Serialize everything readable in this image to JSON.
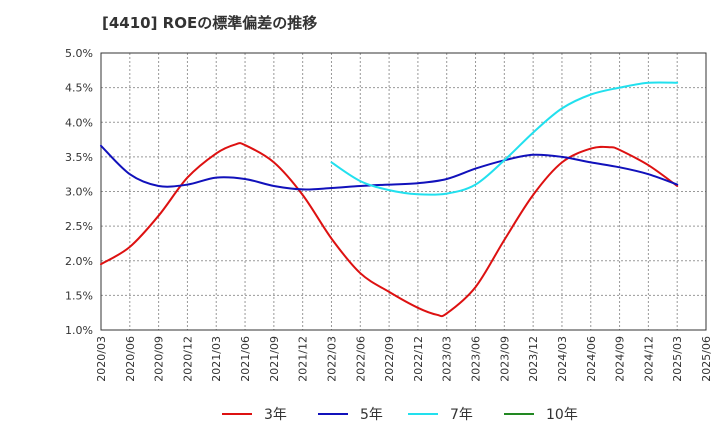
{
  "chart_data": {
    "type": "line",
    "title": "[4410]  ROEの標準偏差の推移",
    "xlabel": "",
    "ylabel": "",
    "ylim": [
      1.0,
      5.0
    ],
    "yticks": [
      "1.0%",
      "1.5%",
      "2.0%",
      "2.5%",
      "3.0%",
      "3.5%",
      "4.0%",
      "4.5%",
      "5.0%"
    ],
    "ytick_values": [
      1.0,
      1.5,
      2.0,
      2.5,
      3.0,
      3.5,
      4.0,
      4.5,
      5.0
    ],
    "xticks": [
      "2020/03",
      "2020/06",
      "2020/09",
      "2020/12",
      "2021/03",
      "2021/06",
      "2021/09",
      "2021/12",
      "2022/03",
      "2022/06",
      "2022/09",
      "2022/12",
      "2023/03",
      "2023/06",
      "2023/09",
      "2023/12",
      "2024/03",
      "2024/06",
      "2024/09",
      "2024/12",
      "2025/03",
      "2025/06"
    ],
    "grid": true,
    "legend_position": "bottom",
    "series": [
      {
        "name": "3年",
        "color": "#dd1111",
        "points": [
          [
            "2020/03",
            1.95
          ],
          [
            "2020/06",
            2.2
          ],
          [
            "2020/09",
            2.65
          ],
          [
            "2020/12",
            3.2
          ],
          [
            "2021/03",
            3.55
          ],
          [
            "2021/05",
            3.68
          ],
          [
            "2021/06",
            3.67
          ],
          [
            "2021/09",
            3.42
          ],
          [
            "2021/12",
            2.95
          ],
          [
            "2022/03",
            2.32
          ],
          [
            "2022/06",
            1.82
          ],
          [
            "2022/09",
            1.55
          ],
          [
            "2022/12",
            1.32
          ],
          [
            "2023/02",
            1.22
          ],
          [
            "2023/03",
            1.24
          ],
          [
            "2023/06",
            1.62
          ],
          [
            "2023/09",
            2.3
          ],
          [
            "2023/12",
            2.95
          ],
          [
            "2024/03",
            3.42
          ],
          [
            "2024/06",
            3.62
          ],
          [
            "2024/08",
            3.64
          ],
          [
            "2024/09",
            3.6
          ],
          [
            "2024/12",
            3.38
          ],
          [
            "2025/03",
            3.08
          ]
        ]
      },
      {
        "name": "5年",
        "color": "#1111bb",
        "points": [
          [
            "2020/03",
            3.66
          ],
          [
            "2020/06",
            3.25
          ],
          [
            "2020/09",
            3.08
          ],
          [
            "2020/12",
            3.1
          ],
          [
            "2021/03",
            3.2
          ],
          [
            "2021/06",
            3.18
          ],
          [
            "2021/09",
            3.08
          ],
          [
            "2021/12",
            3.03
          ],
          [
            "2022/03",
            3.05
          ],
          [
            "2022/06",
            3.08
          ],
          [
            "2022/09",
            3.1
          ],
          [
            "2022/12",
            3.12
          ],
          [
            "2023/03",
            3.18
          ],
          [
            "2023/06",
            3.33
          ],
          [
            "2023/09",
            3.45
          ],
          [
            "2023/12",
            3.53
          ],
          [
            "2024/03",
            3.5
          ],
          [
            "2024/06",
            3.42
          ],
          [
            "2024/09",
            3.35
          ],
          [
            "2024/12",
            3.25
          ],
          [
            "2025/03",
            3.1
          ]
        ]
      },
      {
        "name": "7年",
        "color": "#22e0ee",
        "points": [
          [
            "2022/03",
            3.42
          ],
          [
            "2022/06",
            3.15
          ],
          [
            "2022/09",
            3.02
          ],
          [
            "2022/12",
            2.96
          ],
          [
            "2023/03",
            2.97
          ],
          [
            "2023/06",
            3.1
          ],
          [
            "2023/09",
            3.45
          ],
          [
            "2023/12",
            3.85
          ],
          [
            "2024/03",
            4.2
          ],
          [
            "2024/06",
            4.4
          ],
          [
            "2024/09",
            4.5
          ],
          [
            "2024/12",
            4.57
          ],
          [
            "2025/03",
            4.57
          ]
        ]
      },
      {
        "name": "10年",
        "color": "#228822",
        "points": []
      }
    ]
  }
}
